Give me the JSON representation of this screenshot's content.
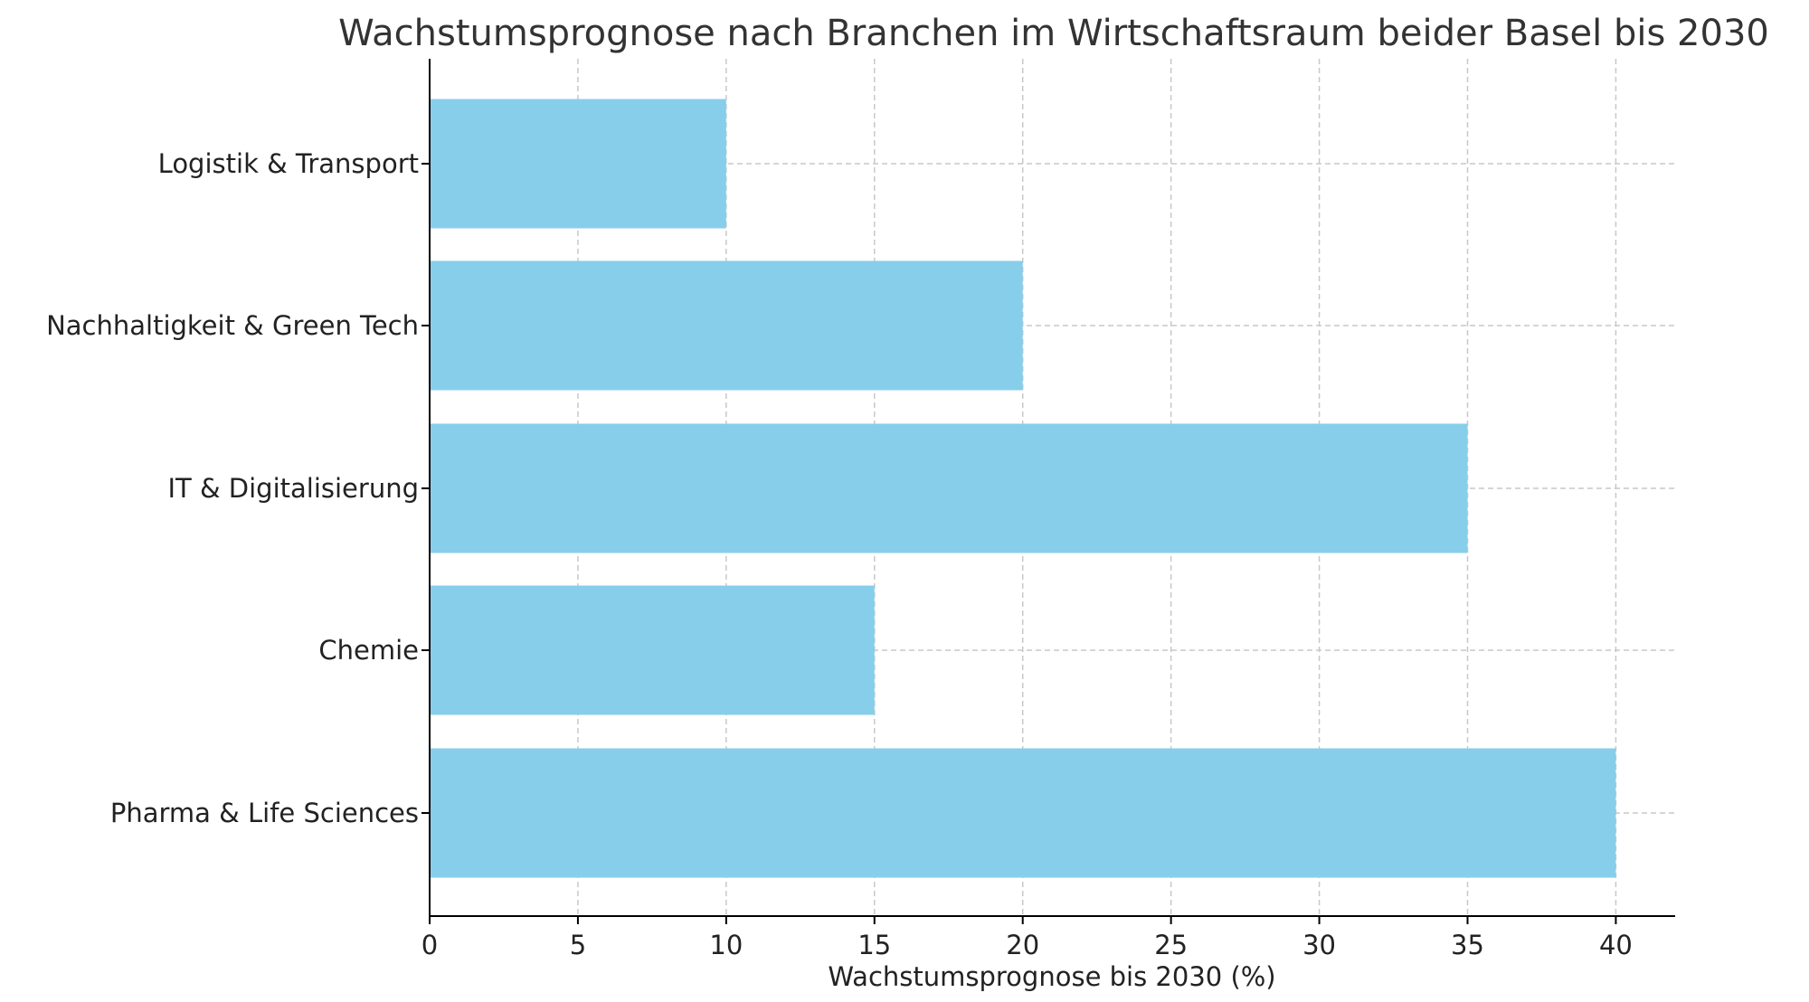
{
  "chart_data": {
    "type": "bar",
    "orientation": "horizontal",
    "title": "Wachstumsprognose nach Branchen im Wirtschaftsraum beider Basel bis 2030",
    "xlabel": "Wachstumsprognose bis 2030 (%)",
    "ylabel": "",
    "categories": [
      "Pharma & Life Sciences",
      "Chemie",
      "IT & Digitalisierung",
      "Nachhaltigkeit & Green Tech",
      "Logistik & Transport"
    ],
    "values": [
      40,
      15,
      35,
      20,
      10
    ],
    "xlim": [
      0,
      42
    ],
    "xticks": [
      0,
      5,
      10,
      15,
      20,
      25,
      30,
      35,
      40
    ],
    "bar_color": "#87CEEB",
    "grid": true,
    "legend": "none"
  }
}
